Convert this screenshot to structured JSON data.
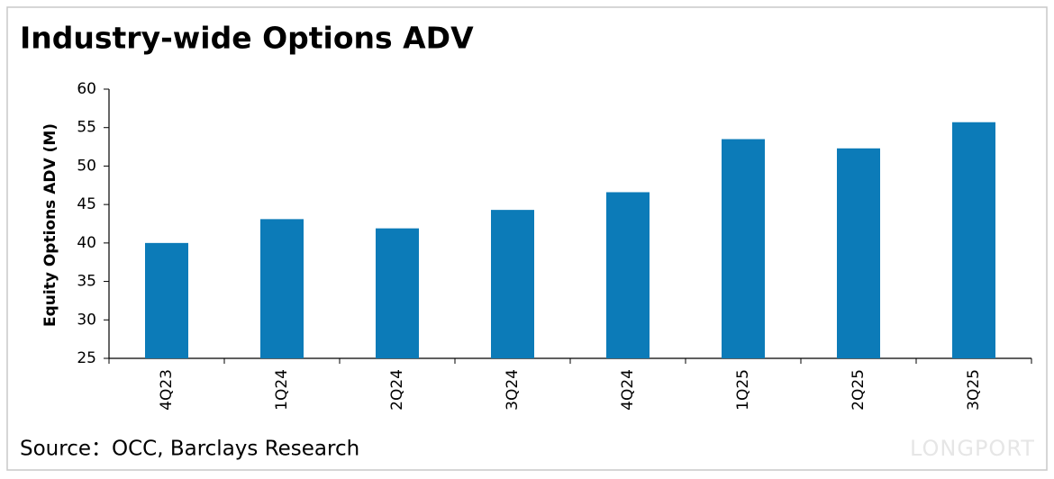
{
  "chart_data": {
    "type": "bar",
    "title": "Industry-wide Options ADV",
    "y_label": "Equity Options ADV (M)",
    "categories": [
      "4Q23",
      "1Q24",
      "2Q24",
      "3Q24",
      "4Q24",
      "1Q25",
      "2Q25",
      "3Q25"
    ],
    "values": [
      40,
      43.1,
      41.9,
      44.3,
      46.6,
      53.5,
      52.3,
      55.7
    ],
    "color": "#0c7bb8",
    "ylim": [
      25,
      60
    ],
    "yticks": [
      25,
      30,
      35,
      40,
      45,
      50,
      55,
      60
    ],
    "grid": false,
    "source": "Source：OCC, Barclays Research",
    "watermark": "LONGPORT"
  }
}
